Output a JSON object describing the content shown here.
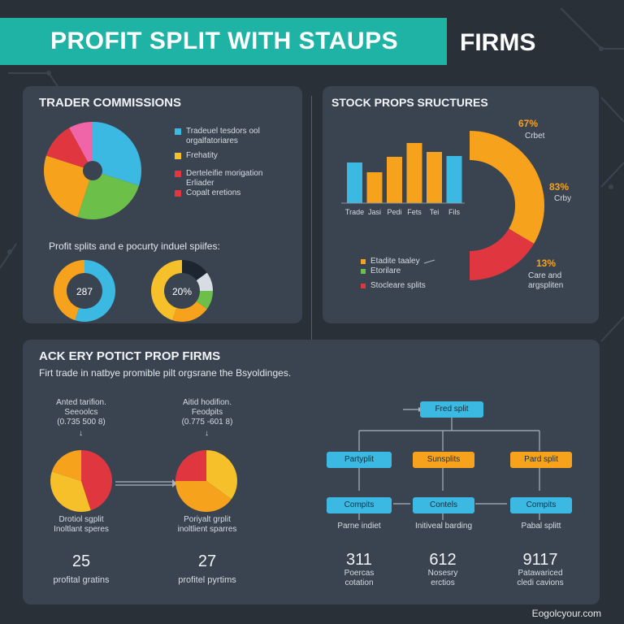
{
  "banner": {
    "title": "PROFIT SPLIT WITH STAUPS",
    "right": "FIRMS"
  },
  "colors": {
    "teal": "#1fb3a5",
    "blue": "#3bb9e3",
    "green": "#6cc04a",
    "orange": "#f7a21c",
    "red": "#e0363f",
    "pink": "#f064a8",
    "yellow": "#f6c02a",
    "panel": "#3a4450",
    "bg": "#2a3038"
  },
  "trader_commissions": {
    "title": "TRADER COMMISSIONS",
    "legend": [
      {
        "label": "Tradeuel tesdors ool\norgalfatoriares",
        "color": "#3bb9e3"
      },
      {
        "label": "Frehatity",
        "color": "#f6c02a"
      },
      {
        "label": "Derteleifie morigation\nErliader",
        "color": "#e0363f"
      },
      {
        "label": "Copalt eretions",
        "color": "#e0363f"
      }
    ],
    "subtitle": "Profit splits and e pocurty induel spiifes:",
    "donut_a_label": "287",
    "donut_b_label": "20%"
  },
  "stock_props": {
    "title": "STOCK PROPS SRUCTURES",
    "bar_labels": [
      "Trade",
      "Jasi",
      "Pedi",
      "Fets",
      "Tei",
      "Fils"
    ],
    "annotations": [
      {
        "pct": "67%",
        "desc": "Crbet"
      },
      {
        "pct": "83%",
        "desc": "Crby"
      },
      {
        "pct": "13%",
        "desc": "Care and\nargspliten"
      }
    ],
    "legend": [
      {
        "label": "Etadite taaley",
        "color": "#f7a21c"
      },
      {
        "label": "Etorilare",
        "color": "#6cc04a"
      },
      {
        "label": "Stocleare splits",
        "color": "#e0363f"
      }
    ]
  },
  "prop_firms": {
    "title": "ACK ERY POTICT PROP FIRMS",
    "subtitle": "Firt trade in natbye promible pilt orgsrane the Bsyoldinges.",
    "left_caption_top": "Anted tarifion.\nSeeoolcs\n(0.735 500 8)",
    "mid_caption_top": "Aitid hodifion.\nFeodpits\n(0.775 -601 8)",
    "left_caption_bottom": "Drotiol sgplit\nInoltlant speres",
    "mid_caption_bottom": "Poriyalt grplit\ninoltlient sparres",
    "left_number": "25",
    "mid_number": "27",
    "left_number_caption": "profital gratins",
    "mid_number_caption": "profitel pyrtims"
  },
  "flow": {
    "top": "Fred split",
    "row1": [
      "Partyplit",
      "Sunsplits",
      "Pard split"
    ],
    "row2": [
      "Compits",
      "Contels",
      "Compits"
    ],
    "row3_labels": [
      "Parne indiet",
      "Initiveal barding",
      "Pabal splitt"
    ],
    "numbers": [
      "311",
      "612",
      "9117"
    ],
    "number_captions": [
      "Poercas\ncotation",
      "Nosesry\nerctios",
      "Patawariced\ncledi cavions"
    ]
  },
  "footer": "Eogolcyour.com",
  "chart_data": [
    {
      "type": "pie",
      "title": "TRADER COMMISSIONS",
      "values": [
        30,
        25,
        25,
        12,
        8
      ],
      "colors": [
        "#3bb9e3",
        "#6cc04a",
        "#f7a21c",
        "#e0363f",
        "#f064a8"
      ]
    },
    {
      "type": "pie",
      "title": "",
      "label": "287",
      "values": [
        55,
        45
      ],
      "colors": [
        "#3bb9e3",
        "#f7a21c"
      ]
    },
    {
      "type": "pie",
      "title": "",
      "label": "20%",
      "values": [
        15,
        10,
        10,
        20,
        45
      ],
      "colors": [
        "#1c2530",
        "#d8dde3",
        "#6cc04a",
        "#f7a21c",
        "#f6c02a"
      ]
    },
    {
      "type": "bar",
      "title": "STOCK PROPS SRUCTURES",
      "categories": [
        "Trade",
        "Jasi",
        "Pedi",
        "Fets",
        "Tei",
        "Fils"
      ],
      "values": [
        50,
        38,
        57,
        74,
        63,
        58
      ],
      "colors": [
        "#3bb9e3",
        "#f7a21c",
        "#f7a21c",
        "#f7a21c",
        "#f7a21c",
        "#3bb9e3"
      ],
      "ylim": [
        0,
        100
      ]
    },
    {
      "type": "pie",
      "title": "",
      "values": [
        67,
        33
      ],
      "colors": [
        "#f7a21c",
        "#e0363f"
      ]
    },
    {
      "type": "pie",
      "title": "",
      "values": [
        45,
        35,
        20
      ],
      "colors": [
        "#e0363f",
        "#f6c02a",
        "#f7a21c"
      ]
    },
    {
      "type": "pie",
      "title": "",
      "values": [
        35,
        40,
        25
      ],
      "colors": [
        "#f6c02a",
        "#f7a21c",
        "#e0363f"
      ]
    }
  ]
}
